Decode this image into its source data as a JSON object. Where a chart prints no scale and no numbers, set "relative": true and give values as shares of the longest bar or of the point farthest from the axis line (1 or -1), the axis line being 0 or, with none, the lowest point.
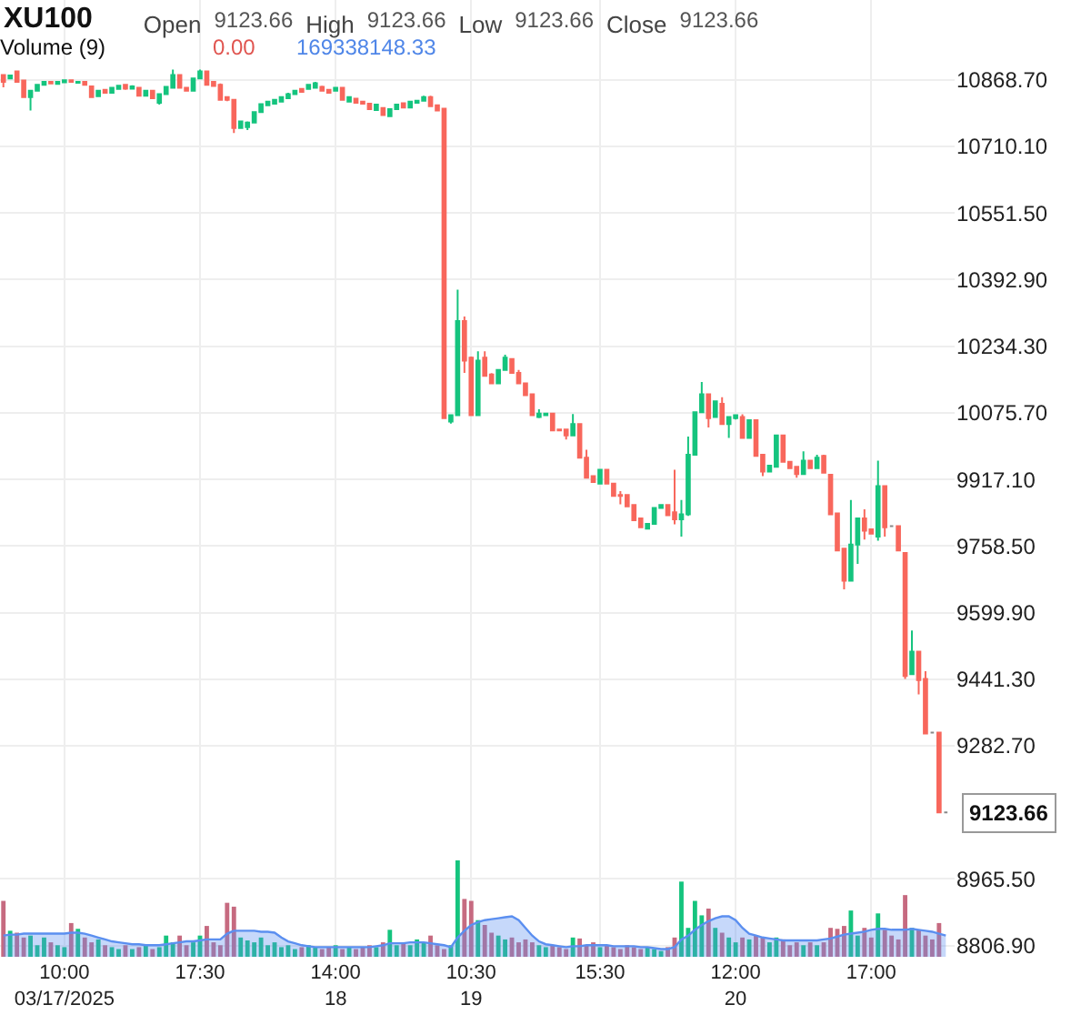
{
  "chart_data": [
    {
      "type": "candlestick",
      "title": "XU100",
      "annotations": [
        "Open",
        "9123.66",
        "High",
        "9123.66",
        "Low",
        "9123.66",
        "Close",
        "9123.66",
        "9123.66"
      ],
      "categories": [
        null,
        null,
        null,
        null,
        null,
        null,
        null,
        null,
        null,
        "10:00\n03/17/2025",
        null,
        null,
        null,
        null,
        null,
        null,
        null,
        null,
        null,
        null,
        null,
        null,
        null,
        null,
        null,
        null,
        null,
        null,
        null,
        "17:30",
        null,
        null,
        null,
        null,
        null,
        null,
        null,
        null,
        null,
        null,
        null,
        null,
        null,
        null,
        null,
        null,
        null,
        null,
        null,
        "14:00\n18",
        null,
        null,
        null,
        null,
        null,
        null,
        null,
        null,
        null,
        null,
        null,
        null,
        null,
        null,
        null,
        null,
        null,
        null,
        null,
        "10:30\n19",
        null,
        null,
        null,
        null,
        null,
        null,
        null,
        null,
        null,
        null,
        null,
        null,
        null,
        null,
        null,
        null,
        null,
        null,
        "15:30",
        null,
        null,
        null,
        null,
        null,
        null,
        null,
        null,
        null,
        null,
        null,
        null,
        null,
        null,
        null,
        null,
        null,
        null,
        null,
        "12:00\n20",
        null,
        null,
        null,
        null,
        null,
        null,
        null,
        null,
        null,
        null,
        null,
        null,
        null,
        null,
        null,
        null,
        null,
        null,
        null,
        "17:00",
        null,
        null,
        null,
        null,
        null,
        null,
        null,
        null,
        null,
        null,
        null
      ],
      "ohlc": [
        [
          10880,
          10882,
          10851,
          10864
        ],
        [
          10872,
          10880,
          10870,
          10879
        ],
        [
          10889,
          10890,
          10864,
          10864
        ],
        [
          10867,
          10868,
          10828,
          10828
        ],
        [
          10828,
          10843,
          10796,
          10843
        ],
        [
          10843,
          10857,
          10841,
          10857
        ],
        [
          10857,
          10866,
          10855,
          10864
        ],
        [
          10864,
          10866,
          10858,
          10860
        ],
        [
          10859,
          10866,
          10857,
          10864
        ],
        [
          10863,
          10870,
          10861,
          10868
        ],
        [
          10868,
          10870,
          10862,
          10864
        ],
        [
          10862,
          10866,
          10860,
          10864
        ],
        [
          10864,
          10865,
          10855,
          10857
        ],
        [
          10853,
          10855,
          10828,
          10828
        ],
        [
          10830,
          10845,
          10828,
          10843
        ],
        [
          10845,
          10847,
          10837,
          10838
        ],
        [
          10838,
          10851,
          10836,
          10850
        ],
        [
          10847,
          10856,
          10845,
          10855
        ],
        [
          10857,
          10858,
          10845,
          10848
        ],
        [
          10848,
          10856,
          10846,
          10853
        ],
        [
          10850,
          10852,
          10831,
          10831
        ],
        [
          10831,
          10845,
          10829,
          10843
        ],
        [
          10843,
          10845,
          10825,
          10825
        ],
        [
          10814,
          10836,
          10810,
          10835
        ],
        [
          10835,
          10853,
          10833,
          10852
        ],
        [
          10850,
          10893,
          10848,
          10880
        ],
        [
          10880,
          10882,
          10850,
          10850
        ],
        [
          10850,
          10852,
          10843,
          10843
        ],
        [
          10843,
          10873,
          10841,
          10872
        ],
        [
          10872,
          10893,
          10870,
          10889
        ],
        [
          10889,
          10890,
          10857,
          10857
        ],
        [
          10864,
          10866,
          10854,
          10854
        ],
        [
          10857,
          10860,
          10821,
          10821
        ],
        [
          10828,
          10830,
          10818,
          10821
        ],
        [
          10821,
          10823,
          10742,
          10754
        ],
        [
          10754,
          10772,
          10752,
          10770
        ],
        [
          10756,
          10770,
          10749,
          10767
        ],
        [
          10767,
          10793,
          10765,
          10792
        ],
        [
          10792,
          10812,
          10790,
          10811
        ],
        [
          10808,
          10819,
          10806,
          10817
        ],
        [
          10812,
          10823,
          10810,
          10821
        ],
        [
          10817,
          10830,
          10815,
          10828
        ],
        [
          10825,
          10838,
          10823,
          10835
        ],
        [
          10835,
          10845,
          10833,
          10843
        ],
        [
          10847,
          10849,
          10838,
          10840
        ],
        [
          10847,
          10859,
          10845,
          10857
        ],
        [
          10850,
          10864,
          10849,
          10861
        ],
        [
          10852,
          10855,
          10842,
          10843
        ],
        [
          10845,
          10847,
          10836,
          10838
        ],
        [
          10843,
          10852,
          10841,
          10850
        ],
        [
          10850,
          10852,
          10821,
          10821
        ],
        [
          10817,
          10830,
          10815,
          10828
        ],
        [
          10824,
          10826,
          10812,
          10814
        ],
        [
          10817,
          10819,
          10810,
          10812
        ],
        [
          10812,
          10814,
          10798,
          10799
        ],
        [
          10797,
          10812,
          10795,
          10810
        ],
        [
          10802,
          10804,
          10784,
          10785
        ],
        [
          10782,
          10801,
          10780,
          10799
        ],
        [
          10799,
          10812,
          10797,
          10810
        ],
        [
          10813,
          10815,
          10802,
          10803
        ],
        [
          10803,
          10819,
          10801,
          10817
        ],
        [
          10814,
          10821,
          10812,
          10819
        ],
        [
          10819,
          10831,
          10817,
          10828
        ],
        [
          10828,
          10831,
          10806,
          10806
        ],
        [
          10808,
          10810,
          10795,
          10796
        ],
        [
          10800,
          10802,
          10063,
          10063
        ],
        [
          10055,
          10072,
          10050,
          10070
        ],
        [
          10070,
          10369,
          10068,
          10294
        ],
        [
          10294,
          10305,
          10171,
          10200
        ],
        [
          10207,
          10210,
          10068,
          10070
        ],
        [
          10070,
          10222,
          10068,
          10200
        ],
        [
          10207,
          10222,
          10162,
          10164
        ],
        [
          10167,
          10170,
          10144,
          10146
        ],
        [
          10146,
          10180,
          10144,
          10178
        ],
        [
          10178,
          10214,
          10176,
          10207
        ],
        [
          10204,
          10206,
          10171,
          10171
        ],
        [
          10171,
          10178,
          10146,
          10146
        ],
        [
          10146,
          10148,
          10118,
          10118
        ],
        [
          10120,
          10122,
          10070,
          10070
        ],
        [
          10066,
          10084,
          10063,
          10074
        ],
        [
          10070,
          10076,
          10068,
          10074
        ],
        [
          10074,
          10076,
          10034,
          10034
        ],
        [
          10036,
          10038,
          10032,
          10034
        ],
        [
          10036,
          10038,
          10012,
          10022
        ],
        [
          10022,
          10073,
          10020,
          10049
        ],
        [
          10049,
          10051,
          9969,
          9969
        ],
        [
          9969,
          9988,
          9919,
          9921
        ],
        [
          9925,
          9927,
          9909,
          9911
        ],
        [
          9907,
          9942,
          9905,
          9940
        ],
        [
          9940,
          9942,
          9907,
          9907
        ],
        [
          9907,
          9909,
          9878,
          9878
        ],
        [
          9880,
          9889,
          9858,
          9878
        ],
        [
          9880,
          9882,
          9853,
          9853
        ],
        [
          9856,
          9858,
          9820,
          9820
        ],
        [
          9824,
          9826,
          9803,
          9803
        ],
        [
          9800,
          9813,
          9798,
          9811
        ],
        [
          9811,
          9851,
          9809,
          9849
        ],
        [
          9849,
          9857,
          9847,
          9856
        ],
        [
          9856,
          9858,
          9832,
          9832
        ],
        [
          9839,
          9940,
          9810,
          9822
        ],
        [
          9822,
          9868,
          9781,
          9834
        ],
        [
          9834,
          10019,
          9830,
          9976
        ],
        [
          9976,
          10079,
          9974,
          10077
        ],
        [
          10077,
          10149,
          10075,
          10120
        ],
        [
          10120,
          10122,
          10041,
          10063
        ],
        [
          10066,
          10105,
          10064,
          10103
        ],
        [
          10097,
          10113,
          10047,
          10049
        ],
        [
          10049,
          10068,
          10016,
          10066
        ],
        [
          10063,
          10072,
          10060,
          10070
        ],
        [
          10066,
          10072,
          10016,
          10016
        ],
        [
          10016,
          10060,
          10014,
          10058
        ],
        [
          10058,
          10060,
          9973,
          9973
        ],
        [
          9976,
          9978,
          9925,
          9936
        ],
        [
          9936,
          9952,
          9934,
          9950
        ],
        [
          9947,
          10024,
          9945,
          10022
        ],
        [
          10022,
          10024,
          9959,
          9959
        ],
        [
          9959,
          9961,
          9944,
          9944
        ],
        [
          9947,
          9949,
          9921,
          9930
        ],
        [
          9930,
          9984,
          9928,
          9962
        ],
        [
          9962,
          9964,
          9944,
          9944
        ],
        [
          9944,
          9976,
          9942,
          9969
        ],
        [
          9973,
          9976,
          9933,
          9933
        ],
        [
          9928,
          9930,
          9834,
          9834
        ],
        [
          9836,
          9838,
          9748,
          9748
        ],
        [
          9752,
          9754,
          9655,
          9676
        ],
        [
          9676,
          9868,
          9674,
          9762
        ],
        [
          9762,
          9826,
          9716,
          9824
        ],
        [
          9824,
          9846,
          9774,
          9795
        ],
        [
          9798,
          9800,
          9786,
          9788
        ],
        [
          9781,
          9962,
          9771,
          9901
        ],
        [
          9901,
          9903,
          9781,
          9803
        ],
        [
          9806,
          9806,
          9806,
          9806
        ],
        [
          9806,
          9808,
          9748,
          9748
        ],
        [
          9742,
          9744,
          9442,
          9449
        ],
        [
          9453,
          9557,
          9451,
          9507
        ],
        [
          9507,
          9509,
          9405,
          9439
        ],
        [
          9442,
          9460,
          9312,
          9312
        ],
        [
          9314,
          9314,
          9314,
          9314
        ],
        [
          9314,
          9316,
          9123.66,
          9123.66
        ],
        [
          9123.66,
          9123.66,
          9123.66,
          9123.66
        ]
      ],
      "colors": [
        "#f8675c",
        "#15c47e",
        "#f8675c",
        "#f8675c",
        "#15c47e",
        "#15c47e",
        "#15c47e",
        "#f8675c",
        "#15c47e",
        "#15c47e",
        "#f8675c",
        "#15c47e",
        "#f8675c",
        "#f8675c",
        "#15c47e",
        "#f8675c",
        "#15c47e",
        "#15c47e",
        "#f8675c",
        "#15c47e",
        "#f8675c",
        "#15c47e",
        "#f8675c",
        "#15c47e",
        "#15c47e",
        "#15c47e",
        "#f8675c",
        "#f8675c",
        "#15c47e",
        "#15c47e",
        "#f8675c",
        "#f8675c",
        "#f8675c",
        "#f8675c",
        "#f8675c",
        "#15c47e",
        "#15c47e",
        "#15c47e",
        "#15c47e",
        "#15c47e",
        "#15c47e",
        "#15c47e",
        "#15c47e",
        "#15c47e",
        "#f8675c",
        "#15c47e",
        "#15c47e",
        "#f8675c",
        "#f8675c",
        "#15c47e",
        "#f8675c",
        "#15c47e",
        "#f8675c",
        "#f8675c",
        "#f8675c",
        "#15c47e",
        "#f8675c",
        "#15c47e",
        "#15c47e",
        "#f8675c",
        "#15c47e",
        "#15c47e",
        "#15c47e",
        "#f8675c",
        "#f8675c",
        "#f8675c",
        "#15c47e",
        "#15c47e",
        "#f8675c",
        "#f8675c",
        "#15c47e",
        "#f8675c",
        "#f8675c",
        "#15c47e",
        "#15c47e",
        "#f8675c",
        "#f8675c",
        "#f8675c",
        "#f8675c",
        "#15c47e",
        "#15c47e",
        "#f8675c",
        "#f8675c",
        "#f8675c",
        "#15c47e",
        "#f8675c",
        "#f8675c",
        "#f8675c",
        "#15c47e",
        "#f8675c",
        "#f8675c",
        "#f8675c",
        "#f8675c",
        "#f8675c",
        "#f8675c",
        "#15c47e",
        "#15c47e",
        "#15c47e",
        "#f8675c",
        "#f8675c",
        "#15c47e",
        "#15c47e",
        "#15c47e",
        "#15c47e",
        "#f8675c",
        "#15c47e",
        "#f8675c",
        "#15c47e",
        "#15c47e",
        "#f8675c",
        "#15c47e",
        "#f8675c",
        "#f8675c",
        "#15c47e",
        "#15c47e",
        "#f8675c",
        "#f8675c",
        "#f8675c",
        "#15c47e",
        "#f8675c",
        "#15c47e",
        "#f8675c",
        "#f8675c",
        "#f8675c",
        "#f8675c",
        "#15c47e",
        "#15c47e",
        "#f8675c",
        "#f8675c",
        "#15c47e",
        "#f8675c",
        "#888888",
        "#f8675c",
        "#f8675c",
        "#15c47e",
        "#f8675c",
        "#f8675c",
        "#888888",
        "#f8675c",
        "#888888"
      ],
      "ylim": [
        8780,
        11059
      ],
      "yticks": [
        {
          "value": 8806.9,
          "label": "8806.90"
        },
        {
          "value": 8965.5,
          "label": "8965.50"
        },
        {
          "value": 9282.7,
          "label": "9282.70"
        },
        {
          "value": 9441.3,
          "label": "9441.30"
        },
        {
          "value": 9599.9,
          "label": "9599.90"
        },
        {
          "value": 9758.5,
          "label": "9758.50"
        },
        {
          "value": 9917.1,
          "label": "9917.10"
        },
        {
          "value": 10075.7,
          "label": "10075.70"
        },
        {
          "value": 10234.3,
          "label": "10234.30"
        },
        {
          "value": 10392.9,
          "label": "10392.90"
        },
        {
          "value": 10551.5,
          "label": "10551.50"
        },
        {
          "value": 10710.1,
          "label": "10710.10"
        },
        {
          "value": 10868.7,
          "label": "10868.70"
        }
      ],
      "grid": true
    },
    {
      "type": "bar",
      "relative": true,
      "annotations": [
        "Volume (9)",
        "0.00",
        "169338148.33"
      ],
      "categories": [
        null,
        null,
        null,
        null,
        null,
        null,
        null,
        null,
        null,
        null,
        null,
        null,
        null,
        null,
        null,
        null,
        null,
        null,
        null,
        null,
        null,
        null,
        null,
        null,
        null,
        null,
        null,
        null,
        null,
        null,
        null,
        null,
        null,
        null,
        null,
        null,
        null,
        null,
        null,
        null,
        null,
        null,
        null,
        null,
        null,
        null,
        null,
        null,
        null,
        null,
        null,
        null,
        null,
        null,
        null,
        null,
        null,
        null,
        null,
        null,
        null,
        null,
        null,
        null,
        null,
        null,
        null,
        null,
        null,
        null,
        null,
        null,
        null,
        null,
        null,
        null,
        null,
        null,
        null,
        null,
        null,
        null,
        null,
        null,
        null,
        null,
        null,
        null,
        null,
        null,
        null,
        null,
        null,
        null,
        null,
        null,
        null,
        null,
        null,
        null,
        null,
        null,
        null,
        null,
        null,
        null,
        null,
        null,
        null,
        null,
        null,
        null,
        null,
        null,
        null,
        null,
        null,
        null,
        null,
        null,
        null,
        null,
        null,
        null,
        null,
        null,
        null,
        null,
        null,
        null,
        null,
        null,
        null,
        null,
        null,
        null,
        null,
        null,
        null,
        null
      ],
      "series": [
        {
          "type": "bar",
          "values": [
            0.58,
            0.27,
            0.25,
            0.2,
            0.22,
            0.12,
            0.2,
            0.15,
            0.12,
            0.1,
            0.35,
            0.29,
            0.2,
            0.15,
            0.18,
            0.12,
            0.1,
            0.08,
            0.12,
            0.08,
            0.1,
            0.12,
            0.08,
            0.1,
            0.22,
            0.15,
            0.22,
            0.12,
            0.15,
            0.22,
            0.32,
            0.15,
            0.12,
            0.56,
            0.52,
            0.2,
            0.17,
            0.15,
            0.2,
            0.12,
            0.15,
            0.1,
            0.12,
            0.08,
            0.1,
            0.12,
            0.1,
            0.08,
            0.1,
            0.12,
            0.08,
            0.1,
            0.08,
            0.1,
            0.12,
            0.1,
            0.15,
            0.28,
            0.12,
            0.15,
            0.12,
            0.18,
            0.15,
            0.22,
            0.12,
            0.08,
            0.12,
            1.0,
            0.6,
            0.58,
            0.38,
            0.33,
            0.25,
            0.22,
            0.18,
            0.2,
            0.15,
            0.18,
            0.15,
            0.12,
            0.1,
            0.12,
            0.1,
            0.08,
            0.2,
            0.19,
            0.12,
            0.15,
            0.1,
            0.12,
            0.1,
            0.08,
            0.12,
            0.1,
            0.08,
            0.1,
            0.08,
            0.06,
            0.1,
            0.2,
            0.78,
            0.3,
            0.58,
            0.43,
            0.5,
            0.3,
            0.25,
            0.2,
            0.15,
            0.2,
            0.18,
            0.22,
            0.2,
            0.15,
            0.2,
            0.18,
            0.12,
            0.15,
            0.12,
            0.15,
            0.12,
            0.15,
            0.3,
            0.29,
            0.32,
            0.48,
            0.22,
            0.3,
            0.2,
            0.45,
            0.28,
            0.22,
            0.18,
            0.64,
            0.3,
            0.28,
            0.22,
            0.18,
            0.35,
            0
          ],
          "colors": [
            "#c66a80",
            "#15c47e",
            "#c66a80",
            "#c66a80",
            "#15c47e",
            "#15c47e",
            "#15c47e",
            "#c66a80",
            "#15c47e",
            "#15c47e",
            "#c66a80",
            "#15c47e",
            "#c66a80",
            "#c66a80",
            "#15c47e",
            "#c66a80",
            "#15c47e",
            "#15c47e",
            "#c66a80",
            "#15c47e",
            "#c66a80",
            "#15c47e",
            "#c66a80",
            "#15c47e",
            "#15c47e",
            "#15c47e",
            "#c66a80",
            "#c66a80",
            "#15c47e",
            "#15c47e",
            "#c66a80",
            "#c66a80",
            "#c66a80",
            "#c66a80",
            "#c66a80",
            "#15c47e",
            "#15c47e",
            "#15c47e",
            "#15c47e",
            "#15c47e",
            "#15c47e",
            "#15c47e",
            "#15c47e",
            "#15c47e",
            "#c66a80",
            "#15c47e",
            "#15c47e",
            "#c66a80",
            "#c66a80",
            "#15c47e",
            "#c66a80",
            "#15c47e",
            "#c66a80",
            "#c66a80",
            "#c66a80",
            "#15c47e",
            "#c66a80",
            "#15c47e",
            "#15c47e",
            "#c66a80",
            "#15c47e",
            "#15c47e",
            "#15c47e",
            "#c66a80",
            "#c66a80",
            "#c66a80",
            "#15c47e",
            "#15c47e",
            "#c66a80",
            "#c66a80",
            "#15c47e",
            "#c66a80",
            "#c66a80",
            "#15c47e",
            "#15c47e",
            "#c66a80",
            "#c66a80",
            "#c66a80",
            "#c66a80",
            "#15c47e",
            "#15c47e",
            "#c66a80",
            "#c66a80",
            "#c66a80",
            "#15c47e",
            "#c66a80",
            "#c66a80",
            "#c66a80",
            "#15c47e",
            "#c66a80",
            "#c66a80",
            "#c66a80",
            "#c66a80",
            "#c66a80",
            "#c66a80",
            "#15c47e",
            "#15c47e",
            "#15c47e",
            "#c66a80",
            "#c66a80",
            "#15c47e",
            "#15c47e",
            "#15c47e",
            "#15c47e",
            "#c66a80",
            "#15c47e",
            "#c66a80",
            "#15c47e",
            "#15c47e",
            "#c66a80",
            "#15c47e",
            "#c66a80",
            "#c66a80",
            "#15c47e",
            "#15c47e",
            "#c66a80",
            "#c66a80",
            "#c66a80",
            "#15c47e",
            "#c66a80",
            "#15c47e",
            "#c66a80",
            "#c66a80",
            "#c66a80",
            "#c66a80",
            "#15c47e",
            "#15c47e",
            "#c66a80",
            "#c66a80",
            "#15c47e",
            "#c66a80",
            "#c66a80",
            "#c66a80",
            "#c66a80",
            "#15c47e",
            "#c66a80",
            "#c66a80",
            "#c66a80",
            "#c66a80",
            "#c66a80"
          ]
        },
        {
          "type": "area",
          "color": "#5b8ff0",
          "values": [
            0.22,
            0.23,
            0.23,
            0.24,
            0.24,
            0.24,
            0.24,
            0.24,
            0.24,
            0.24,
            0.25,
            0.25,
            0.24,
            0.22,
            0.2,
            0.18,
            0.16,
            0.15,
            0.14,
            0.13,
            0.13,
            0.12,
            0.12,
            0.12,
            0.13,
            0.14,
            0.15,
            0.16,
            0.16,
            0.17,
            0.18,
            0.18,
            0.18,
            0.24,
            0.27,
            0.27,
            0.27,
            0.27,
            0.26,
            0.26,
            0.25,
            0.2,
            0.16,
            0.14,
            0.12,
            0.11,
            0.1,
            0.1,
            0.1,
            0.1,
            0.1,
            0.1,
            0.1,
            0.1,
            0.1,
            0.11,
            0.12,
            0.14,
            0.14,
            0.14,
            0.15,
            0.15,
            0.15,
            0.14,
            0.13,
            0.12,
            0.1,
            0.2,
            0.27,
            0.33,
            0.36,
            0.38,
            0.39,
            0.4,
            0.41,
            0.42,
            0.38,
            0.3,
            0.22,
            0.16,
            0.13,
            0.12,
            0.11,
            0.1,
            0.11,
            0.11,
            0.12,
            0.12,
            0.12,
            0.12,
            0.11,
            0.11,
            0.11,
            0.11,
            0.1,
            0.1,
            0.09,
            0.08,
            0.08,
            0.1,
            0.18,
            0.22,
            0.28,
            0.33,
            0.37,
            0.4,
            0.42,
            0.42,
            0.38,
            0.3,
            0.24,
            0.22,
            0.2,
            0.19,
            0.18,
            0.17,
            0.17,
            0.17,
            0.17,
            0.17,
            0.17,
            0.18,
            0.19,
            0.21,
            0.23,
            0.24,
            0.25,
            0.26,
            0.28,
            0.29,
            0.29,
            0.28,
            0.28,
            0.28,
            0.29,
            0.28,
            0.27,
            0.26,
            0.24,
            0.22
          ]
        }
      ]
    }
  ]
}
